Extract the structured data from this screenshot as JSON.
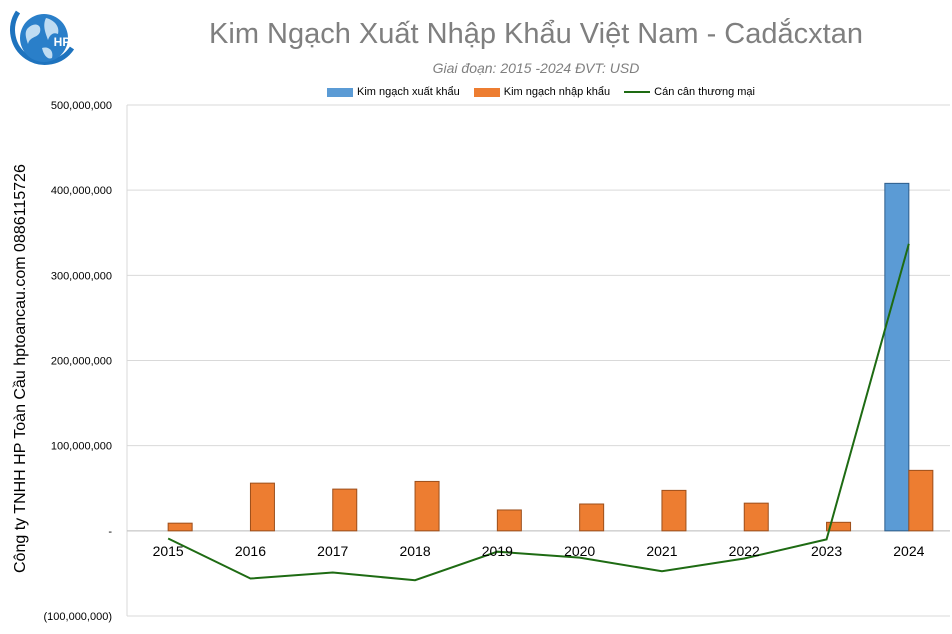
{
  "watermark": "Công ty TNHH HP Toàn Cầu hptoancau.com 0886115726",
  "logo": {
    "text": "HP",
    "colors": {
      "globe": "#1e73be",
      "ring": "#1e73be"
    }
  },
  "chart_data": {
    "type": "bar",
    "title": "Kim Ngạch Xuất Nhập Khẩu Việt Nam - Cadắcxtan",
    "subtitle": "Giai đoạn: 2015 -2024  ĐVT: USD",
    "categories": [
      "2015",
      "2016",
      "2017",
      "2018",
      "2019",
      "2020",
      "2021",
      "2022",
      "2023",
      "2024"
    ],
    "series": [
      {
        "name": "Kim ngạch xuất khẩu",
        "type": "bar",
        "color": "#5b9bd5",
        "values": [
          0,
          0,
          0,
          0,
          0,
          0,
          0,
          0,
          0,
          408000000
        ]
      },
      {
        "name": "Kim ngạch nhập khẩu",
        "type": "bar",
        "color": "#ed7d31",
        "values": [
          9000000,
          56000000,
          49000000,
          58000000,
          24500000,
          31500000,
          47500000,
          32500000,
          10000000,
          71000000
        ]
      },
      {
        "name": "Cán cân thương mại",
        "type": "line",
        "color": "#1e6b13",
        "values": [
          -9000000,
          -56000000,
          -49000000,
          -58000000,
          -24500000,
          -31500000,
          -47500000,
          -32500000,
          -10000000,
          337000000
        ]
      }
    ],
    "ylim": [
      -100000000,
      500000000
    ],
    "yticks": [
      -100000000,
      0,
      100000000,
      200000000,
      300000000,
      400000000,
      500000000
    ],
    "ytick_labels": [
      "(100,000,000)",
      "-",
      "100,000,000",
      "200,000,000",
      "300,000,000",
      "400,000,000",
      "500,000,000"
    ],
    "grid": true,
    "legend": "top"
  }
}
